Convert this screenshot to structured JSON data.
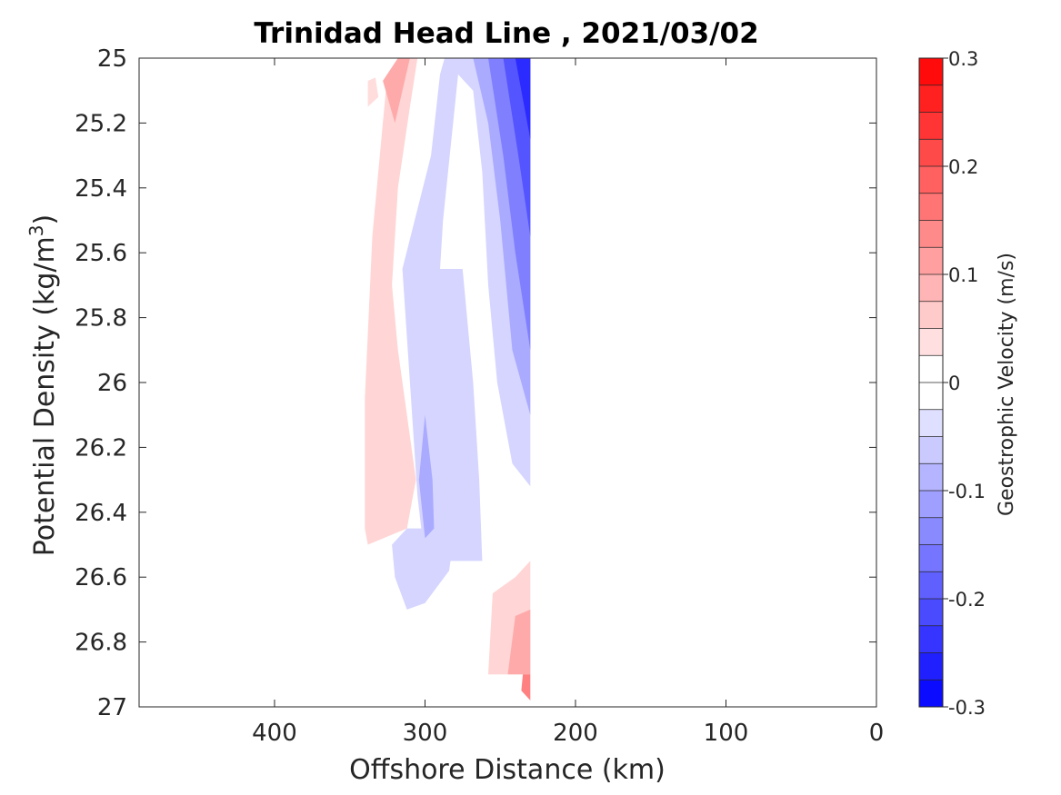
{
  "chart_data": {
    "type": "contourf",
    "title": "Trinidad Head Line , 2021/03/02",
    "xlabel": "Offshore Distance (km)",
    "ylabel_main": "Potential Density (kg/m",
    "ylabel_sup": "3",
    "ylabel_close": ")",
    "xlim": [
      490,
      0
    ],
    "xreversed": true,
    "ylim": [
      25,
      27
    ],
    "yreversed": true,
    "xticks": [
      400,
      300,
      200,
      100,
      0
    ],
    "xtick_labels": [
      "400",
      "300",
      "200",
      "100",
      "0"
    ],
    "yticks": [
      25,
      25.2,
      25.4,
      25.6,
      25.8,
      26,
      26.2,
      26.4,
      26.6,
      26.8,
      27
    ],
    "ytick_labels": [
      "25",
      "25.2",
      "25.4",
      "25.6",
      "25.8",
      "26",
      "26.2",
      "26.4",
      "26.6",
      "26.8",
      "27"
    ],
    "data_extent_x_km": [
      230,
      340
    ],
    "colorbar": {
      "label": "Geostrophic Velocity (m/s)",
      "range": [
        -0.3,
        0.3
      ],
      "levels": 24,
      "ticks": [
        0.3,
        0.2,
        0.1,
        0,
        -0.1,
        -0.2,
        -0.3
      ],
      "tick_labels": [
        "0.3",
        "0.2",
        "0.1",
        "0",
        "-0.1",
        "-0.2",
        "-0.3"
      ],
      "positive_color": "#ff0000",
      "negative_color": "#0000ff",
      "zero_color": "#ffffff"
    },
    "contour_regions": [
      {
        "name": "pos-band-shallow",
        "value": 0.05,
        "polygon": [
          [
            340,
            26.45
          ],
          [
            340,
            26.05
          ],
          [
            335,
            25.55
          ],
          [
            328,
            25.2
          ],
          [
            325,
            25.05
          ],
          [
            318,
            25.0
          ],
          [
            305,
            25.0
          ],
          [
            310,
            25.15
          ],
          [
            318,
            25.4
          ],
          [
            322,
            25.7
          ],
          [
            318,
            25.9
          ],
          [
            312,
            26.1
          ],
          [
            306,
            26.3
          ],
          [
            312,
            26.45
          ],
          [
            338,
            26.5
          ]
        ]
      },
      {
        "name": "pos-core-shallow",
        "value": 0.1,
        "polygon": [
          [
            328,
            25.07
          ],
          [
            320,
            25.2
          ],
          [
            315,
            25.1
          ],
          [
            310,
            25.0
          ],
          [
            318,
            25.0
          ]
        ]
      },
      {
        "name": "pos-small-top",
        "value": 0.04,
        "polygon": [
          [
            338,
            25.07
          ],
          [
            333,
            25.06
          ],
          [
            331,
            25.12
          ],
          [
            338,
            25.15
          ]
        ]
      },
      {
        "name": "neg-band-main",
        "value": -0.05,
        "polygon": [
          [
            287,
            25.0
          ],
          [
            230,
            25.0
          ],
          [
            230,
            26.32
          ],
          [
            242,
            26.25
          ],
          [
            252,
            26.0
          ],
          [
            258,
            25.7
          ],
          [
            262,
            25.35
          ],
          [
            268,
            25.1
          ],
          [
            278,
            25.05
          ],
          [
            288,
            25.5
          ],
          [
            290,
            25.65
          ],
          [
            275,
            25.65
          ],
          [
            268,
            26.0
          ],
          [
            264,
            26.3
          ],
          [
            262,
            26.55
          ],
          [
            300,
            26.55
          ],
          [
            305,
            26.35
          ],
          [
            310,
            26.0
          ],
          [
            315,
            25.65
          ],
          [
            296,
            25.3
          ],
          [
            290,
            25.05
          ]
        ]
      },
      {
        "name": "neg-deep-lobe",
        "value": -0.05,
        "polygon": [
          [
            312,
            26.45
          ],
          [
            322,
            26.5
          ],
          [
            320,
            26.6
          ],
          [
            312,
            26.7
          ],
          [
            300,
            26.68
          ],
          [
            284,
            26.58
          ],
          [
            280,
            26.45
          ]
        ]
      },
      {
        "name": "neg-mid",
        "value": -0.1,
        "polygon": [
          [
            268,
            25.0
          ],
          [
            230,
            25.0
          ],
          [
            230,
            26.1
          ],
          [
            242,
            25.9
          ],
          [
            250,
            25.5
          ],
          [
            258,
            25.2
          ]
        ]
      },
      {
        "name": "neg-core-1",
        "value": -0.15,
        "polygon": [
          [
            258,
            25.0
          ],
          [
            230,
            25.0
          ],
          [
            230,
            25.9
          ],
          [
            240,
            25.6
          ],
          [
            248,
            25.3
          ]
        ]
      },
      {
        "name": "neg-core-2",
        "value": -0.2,
        "polygon": [
          [
            248,
            25.0
          ],
          [
            230,
            25.0
          ],
          [
            230,
            25.55
          ],
          [
            238,
            25.3
          ]
        ]
      },
      {
        "name": "neg-core-3",
        "value": -0.25,
        "polygon": [
          [
            240,
            25.0
          ],
          [
            230,
            25.0
          ],
          [
            230,
            25.25
          ]
        ]
      },
      {
        "name": "neg-lens",
        "value": -0.1,
        "polygon": [
          [
            300,
            26.1
          ],
          [
            295,
            26.3
          ],
          [
            294,
            26.45
          ],
          [
            300,
            26.48
          ],
          [
            304,
            26.3
          ]
        ]
      },
      {
        "name": "pos-deep-band",
        "value": 0.05,
        "polygon": [
          [
            258,
            26.9
          ],
          [
            230,
            26.9
          ],
          [
            230,
            26.55
          ],
          [
            240,
            26.6
          ],
          [
            255,
            26.65
          ]
        ]
      },
      {
        "name": "pos-deep-core",
        "value": 0.1,
        "polygon": [
          [
            245,
            26.9
          ],
          [
            230,
            26.9
          ],
          [
            230,
            26.7
          ],
          [
            240,
            26.72
          ]
        ]
      },
      {
        "name": "pos-deep-max",
        "value": 0.15,
        "polygon": [
          [
            235,
            26.9
          ],
          [
            230,
            26.9
          ],
          [
            230,
            26.98
          ],
          [
            236,
            26.95
          ]
        ]
      }
    ]
  }
}
